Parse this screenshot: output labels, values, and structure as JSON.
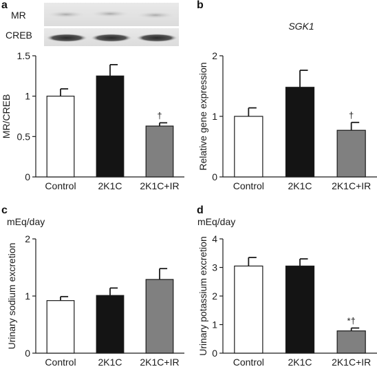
{
  "colors": {
    "control": "#ffffff",
    "2k1c": "#141414",
    "2k1c_ir": "#808080",
    "stroke": "#1a1a1a"
  },
  "blot": {
    "labels": [
      "MR",
      "CREB"
    ]
  },
  "chart_data": [
    {
      "panel": "a",
      "type": "bar",
      "title": "",
      "unit": "",
      "ylabel": "MR/CREB",
      "categories": [
        "Control",
        "2K1C",
        "2K1C+IR"
      ],
      "values": [
        1.0,
        1.25,
        0.63
      ],
      "errors": [
        0.09,
        0.14,
        0.04
      ],
      "annotations": [
        "",
        "",
        "†"
      ],
      "ylim": [
        0,
        1.5
      ],
      "yticks": [
        0,
        0.5,
        1,
        1.5
      ],
      "ytick_labels": [
        "0",
        "0.5",
        "1",
        "1.5"
      ],
      "colors": [
        "#ffffff",
        "#141414",
        "#808080"
      ]
    },
    {
      "panel": "b",
      "type": "bar",
      "title": "SGK1",
      "unit": "",
      "ylabel": "Relative gene expression",
      "categories": [
        "Control",
        "2K1C",
        "2K1C+IR"
      ],
      "values": [
        1.0,
        1.48,
        0.77
      ],
      "errors": [
        0.14,
        0.28,
        0.13
      ],
      "annotations": [
        "",
        "",
        "†"
      ],
      "ylim": [
        0,
        2
      ],
      "yticks": [
        0,
        1,
        2
      ],
      "ytick_labels": [
        "0",
        "1",
        "2"
      ],
      "colors": [
        "#ffffff",
        "#141414",
        "#808080"
      ]
    },
    {
      "panel": "c",
      "type": "bar",
      "title": "",
      "unit": "mEq/day",
      "ylabel": "Urinary sodium excretion",
      "categories": [
        "Control",
        "2K1C",
        "2K1C+IR"
      ],
      "values": [
        0.92,
        1.01,
        1.29
      ],
      "errors": [
        0.07,
        0.13,
        0.19
      ],
      "annotations": [
        "",
        "",
        ""
      ],
      "ylim": [
        0,
        2
      ],
      "yticks": [
        0,
        1,
        2
      ],
      "ytick_labels": [
        "0",
        "1",
        "2"
      ],
      "colors": [
        "#ffffff",
        "#141414",
        "#808080"
      ]
    },
    {
      "panel": "d",
      "type": "bar",
      "title": "",
      "unit": "mEq/day",
      "ylabel": "Urinary potassium excretion",
      "categories": [
        "Control",
        "2K1C",
        "2K1C+IR"
      ],
      "values": [
        3.05,
        3.05,
        0.78
      ],
      "errors": [
        0.3,
        0.25,
        0.1
      ],
      "annotations": [
        "",
        "",
        "*†"
      ],
      "ylim": [
        0,
        4
      ],
      "yticks": [
        0,
        1,
        2,
        3,
        4
      ],
      "ytick_labels": [
        "0",
        "1",
        "2",
        "3",
        "4"
      ],
      "colors": [
        "#ffffff",
        "#141414",
        "#808080"
      ]
    }
  ]
}
